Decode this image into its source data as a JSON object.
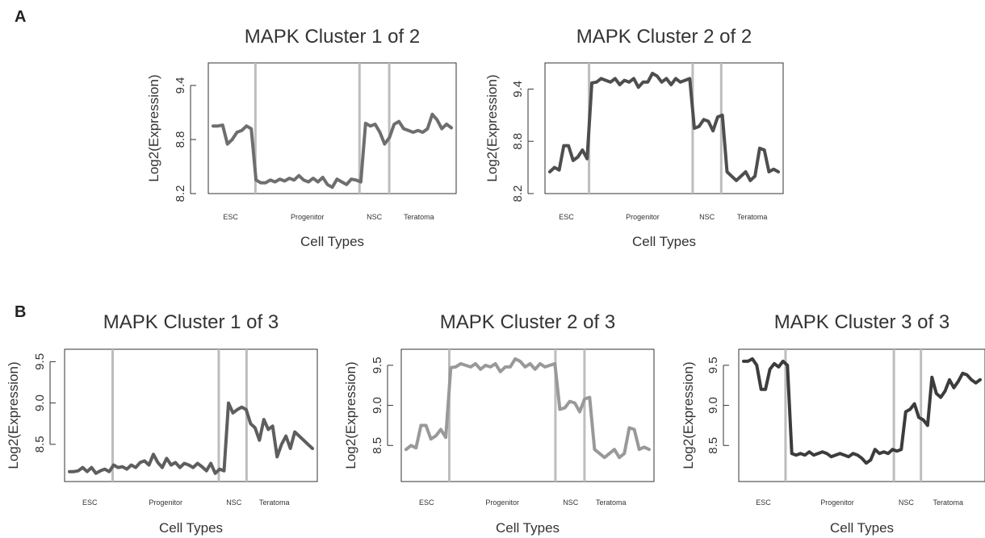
{
  "panels": [
    {
      "label": "A"
    },
    {
      "label": "B"
    }
  ],
  "chart_data": [
    {
      "type": "line",
      "panel": "A",
      "title": "MAPK Cluster 1 of 2",
      "xlabel": "Cell Types",
      "ylabel": "Log2(Expression)",
      "ylim": [
        8.2,
        9.65
      ],
      "yticks": [
        "8.2",
        "8.8",
        "9.4"
      ],
      "regions": [
        "ESC",
        "Progenitor",
        "NSC",
        "Teratoma"
      ],
      "color": "#6e6e6e",
      "series": [
        {
          "values": [
            8.95,
            8.95,
            8.96,
            8.75,
            8.8,
            8.88,
            8.9,
            8.95,
            8.92,
            8.35,
            8.32,
            8.32,
            8.35,
            8.33,
            8.36,
            8.34,
            8.37,
            8.35,
            8.4,
            8.35,
            8.33,
            8.37,
            8.33,
            8.38,
            8.3,
            8.27,
            8.36,
            8.33,
            8.3,
            8.36,
            8.35,
            8.33,
            8.98,
            8.95,
            8.97,
            8.88,
            8.75,
            8.82,
            8.97,
            9.0,
            8.92,
            8.9,
            8.88,
            8.9,
            8.88,
            8.92,
            9.08,
            9.02,
            8.92,
            8.97,
            8.93
          ]
        }
      ]
    },
    {
      "type": "line",
      "panel": "A",
      "title": "MAPK Cluster 2 of 2",
      "xlabel": "Cell Types",
      "ylabel": "Log2(Expression)",
      "ylim": [
        8.2,
        9.7
      ],
      "yticks": [
        "8.2",
        "8.8",
        "9.4"
      ],
      "regions": [
        "ESC",
        "Progenitor",
        "NSC",
        "Teratoma"
      ],
      "color": "#4e4e4e",
      "series": [
        {
          "values": [
            8.45,
            8.5,
            8.47,
            8.75,
            8.75,
            8.58,
            8.62,
            8.7,
            8.6,
            9.47,
            9.48,
            9.52,
            9.5,
            9.48,
            9.52,
            9.45,
            9.5,
            9.48,
            9.52,
            9.42,
            9.48,
            9.48,
            9.58,
            9.55,
            9.48,
            9.52,
            9.45,
            9.52,
            9.48,
            9.5,
            9.52,
            8.95,
            8.97,
            9.05,
            9.03,
            8.92,
            9.08,
            9.1,
            8.45,
            8.4,
            8.35,
            8.4,
            8.45,
            8.35,
            8.4,
            8.72,
            8.7,
            8.45,
            8.48,
            8.45
          ]
        }
      ]
    },
    {
      "type": "line",
      "panel": "B",
      "title": "MAPK Cluster 1 of 3",
      "xlabel": "Cell Types",
      "ylabel": "Log2(Expression)",
      "ylim": [
        8.05,
        9.65
      ],
      "yticks": [
        "8.5",
        "9.0",
        "9.5"
      ],
      "regions": [
        "ESC",
        "Progenitor",
        "NSC",
        "Teratoma"
      ],
      "color": "#5e5e5e",
      "series": [
        {
          "values": [
            8.17,
            8.17,
            8.18,
            8.22,
            8.17,
            8.22,
            8.15,
            8.18,
            8.2,
            8.17,
            8.25,
            8.22,
            8.23,
            8.2,
            8.25,
            8.22,
            8.28,
            8.3,
            8.25,
            8.38,
            8.28,
            8.22,
            8.33,
            8.25,
            8.28,
            8.22,
            8.27,
            8.25,
            8.22,
            8.27,
            8.23,
            8.18,
            8.27,
            8.15,
            8.2,
            8.18,
            9.0,
            8.88,
            8.92,
            8.95,
            8.92,
            8.75,
            8.7,
            8.55,
            8.8,
            8.68,
            8.72,
            8.35,
            8.5,
            8.6,
            8.45,
            8.65,
            8.6,
            8.55,
            8.5,
            8.45
          ]
        }
      ]
    },
    {
      "type": "line",
      "panel": "B",
      "title": "MAPK Cluster 2 of 3",
      "xlabel": "Cell Types",
      "ylabel": "Log2(Expression)",
      "ylim": [
        8.05,
        9.7
      ],
      "yticks": [
        "8.5",
        "9.0",
        "9.5"
      ],
      "regions": [
        "ESC",
        "Progenitor",
        "NSC",
        "Teratoma"
      ],
      "color": "#999999",
      "series": [
        {
          "values": [
            8.45,
            8.5,
            8.47,
            8.75,
            8.75,
            8.58,
            8.62,
            8.7,
            8.6,
            9.47,
            9.48,
            9.52,
            9.5,
            9.48,
            9.52,
            9.45,
            9.5,
            9.48,
            9.52,
            9.42,
            9.48,
            9.48,
            9.58,
            9.55,
            9.48,
            9.52,
            9.45,
            9.52,
            9.48,
            9.5,
            9.52,
            8.95,
            8.97,
            9.05,
            9.03,
            8.92,
            9.08,
            9.1,
            8.45,
            8.4,
            8.35,
            8.4,
            8.45,
            8.35,
            8.4,
            8.72,
            8.7,
            8.45,
            8.48,
            8.45
          ]
        }
      ]
    },
    {
      "type": "line",
      "panel": "B",
      "title": "MAPK Cluster 3 of 3",
      "xlabel": "Cell Types",
      "ylabel": "Log2(Expression)",
      "ylim": [
        8.05,
        9.7
      ],
      "yticks": [
        "8.5",
        "9.0",
        "9.5"
      ],
      "regions": [
        "ESC",
        "Progenitor",
        "NSC",
        "Teratoma"
      ],
      "color": "#3c3c3c",
      "series": [
        {
          "values": [
            9.55,
            9.55,
            9.58,
            9.5,
            9.2,
            9.2,
            9.45,
            9.52,
            9.48,
            9.55,
            9.5,
            8.4,
            8.38,
            8.4,
            8.38,
            8.42,
            8.38,
            8.4,
            8.42,
            8.4,
            8.36,
            8.38,
            8.4,
            8.38,
            8.36,
            8.4,
            8.38,
            8.34,
            8.28,
            8.32,
            8.45,
            8.4,
            8.42,
            8.4,
            8.45,
            8.43,
            8.45,
            8.92,
            8.95,
            9.02,
            8.85,
            8.82,
            8.75,
            9.35,
            9.15,
            9.1,
            9.18,
            9.32,
            9.22,
            9.3,
            9.4,
            9.38,
            9.32,
            9.28,
            9.32
          ]
        }
      ]
    }
  ]
}
